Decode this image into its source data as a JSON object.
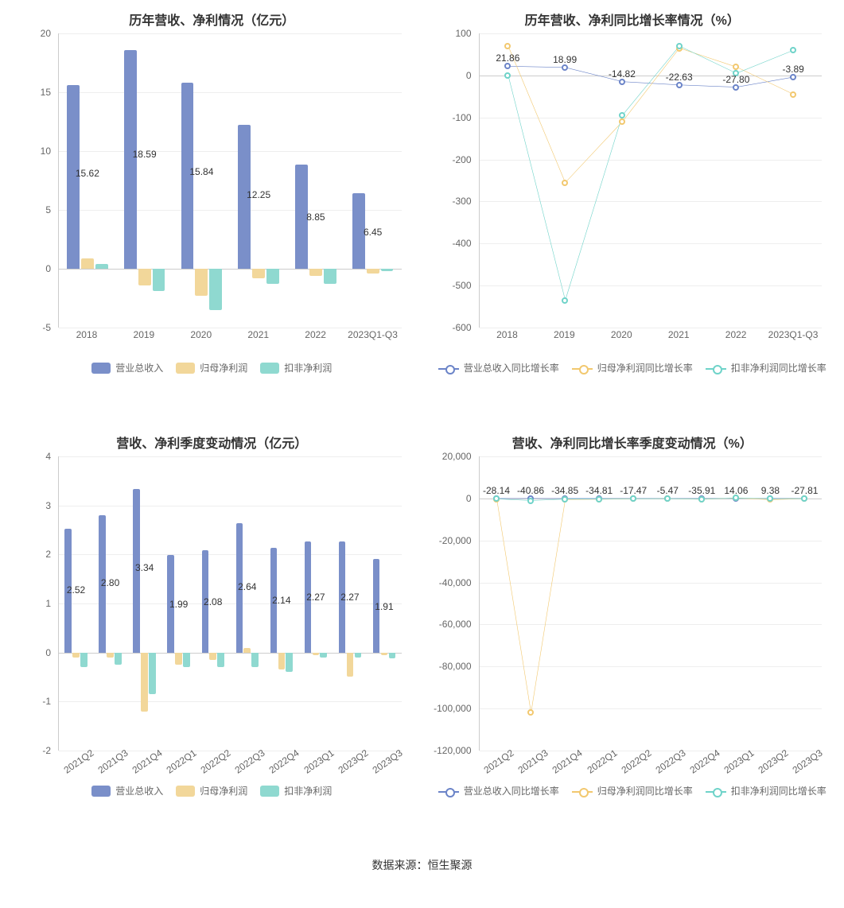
{
  "colors": {
    "series1": "#7a8fc9",
    "series2": "#f2d79a",
    "series3": "#8fd9d0",
    "line1": "#6b84c8",
    "line2": "#f2c86f",
    "line3": "#6fd3c9",
    "grid": "#eeeeee",
    "axis": "#cccccc",
    "text": "#333333",
    "axis_text": "#666666",
    "background": "#ffffff"
  },
  "legend_bar": [
    "营业总收入",
    "归母净利润",
    "扣非净利润"
  ],
  "legend_line": [
    "营业总收入同比增长率",
    "归母净利润同比增长率",
    "扣非净利润同比增长率"
  ],
  "footer": "数据来源：恒生聚源",
  "chart1": {
    "title": "历年营收、净利情况（亿元）",
    "type": "bar",
    "categories": [
      "2018",
      "2019",
      "2020",
      "2021",
      "2022",
      "2023Q1-Q3"
    ],
    "ymin": -5,
    "ymax": 20,
    "ystep": 5,
    "series": [
      {
        "key": "rev",
        "color": "#7a8fc9",
        "values": [
          15.62,
          18.59,
          15.84,
          12.25,
          8.85,
          6.45
        ]
      },
      {
        "key": "np",
        "color": "#f2d79a",
        "values": [
          0.9,
          -1.4,
          -2.3,
          -0.8,
          -0.6,
          -0.4
        ]
      },
      {
        "key": "adj",
        "color": "#8fd9d0",
        "values": [
          0.4,
          -1.9,
          -3.5,
          -1.3,
          -1.3,
          -0.2
        ]
      }
    ],
    "value_labels": [
      "15.62",
      "18.59",
      "15.84",
      "12.25",
      "8.85",
      "6.45"
    ],
    "bar_width": 0.22,
    "bar_gap": 0.03
  },
  "chart2": {
    "title": "历年营收、净利同比增长率情况（%）",
    "type": "line",
    "categories": [
      "2018",
      "2019",
      "2020",
      "2021",
      "2022",
      "2023Q1-Q3"
    ],
    "ymin": -600,
    "ymax": 100,
    "ystep": 100,
    "series": [
      {
        "key": "rev",
        "color": "#6b84c8",
        "values": [
          21.86,
          18.99,
          -14.82,
          -22.63,
          -27.8,
          -3.89
        ]
      },
      {
        "key": "np",
        "color": "#f2c86f",
        "values": [
          70,
          -255,
          -110,
          65,
          20,
          -45
        ]
      },
      {
        "key": "adj",
        "color": "#6fd3c9",
        "values": [
          0,
          -535,
          -95,
          70,
          5,
          60
        ]
      }
    ],
    "value_labels": [
      "21.86",
      "18.99",
      "-14.82",
      "-22.63",
      "-27.80",
      "-3.89"
    ]
  },
  "chart3": {
    "title": "营收、净利季度变动情况（亿元）",
    "type": "bar",
    "categories": [
      "2021Q2",
      "2021Q3",
      "2021Q4",
      "2022Q1",
      "2022Q2",
      "2022Q3",
      "2022Q4",
      "2023Q1",
      "2023Q2",
      "2023Q3"
    ],
    "ymin": -2,
    "ymax": 4,
    "ystep": 1,
    "series": [
      {
        "key": "rev",
        "color": "#7a8fc9",
        "values": [
          2.52,
          2.8,
          3.34,
          1.99,
          2.08,
          2.64,
          2.14,
          2.27,
          2.27,
          1.91
        ]
      },
      {
        "key": "np",
        "color": "#f2d79a",
        "values": [
          -0.1,
          -0.1,
          -1.2,
          -0.25,
          -0.15,
          0.1,
          -0.35,
          -0.05,
          -0.5,
          -0.05
        ]
      },
      {
        "key": "adj",
        "color": "#8fd9d0",
        "values": [
          -0.3,
          -0.25,
          -0.85,
          -0.3,
          -0.3,
          -0.3,
          -0.4,
          -0.1,
          -0.1,
          -0.12
        ]
      }
    ],
    "value_labels": [
      "2.52",
      "2.80",
      "3.34",
      "1.99",
      "2.08",
      "2.64",
      "2.14",
      "2.27",
      "2.27",
      "1.91"
    ],
    "bar_width": 0.2,
    "bar_gap": 0.03,
    "rotate_x": true
  },
  "chart4": {
    "title": "营收、净利同比增长率季度变动情况（%）",
    "type": "line",
    "categories": [
      "2021Q2",
      "2021Q3",
      "2021Q4",
      "2022Q1",
      "2022Q2",
      "2022Q3",
      "2022Q4",
      "2023Q1",
      "2023Q2",
      "2023Q3"
    ],
    "ymin": -120000,
    "ymax": 20000,
    "ystep": 20000,
    "series": [
      {
        "key": "rev",
        "color": "#6b84c8",
        "values": [
          -28.14,
          -40.86,
          -34.85,
          -34.81,
          -17.47,
          -5.47,
          -35.91,
          14.06,
          9.38,
          -27.81
        ]
      },
      {
        "key": "np",
        "color": "#f2c86f",
        "values": [
          -300,
          -102000,
          -500,
          -400,
          -200,
          -100,
          -400,
          200,
          -600,
          -100
        ]
      },
      {
        "key": "adj",
        "color": "#6fd3c9",
        "values": [
          -200,
          -1000,
          -300,
          -300,
          -150,
          -80,
          -300,
          150,
          -100,
          -80
        ]
      }
    ],
    "value_labels": [
      "-28.14",
      "-40.86",
      "-34.85",
      "-34.81",
      "-17.47",
      "-5.47",
      "-35.91",
      "14.06",
      "9.38",
      "-27.81"
    ],
    "rotate_x": true,
    "ytick_format": "comma"
  }
}
